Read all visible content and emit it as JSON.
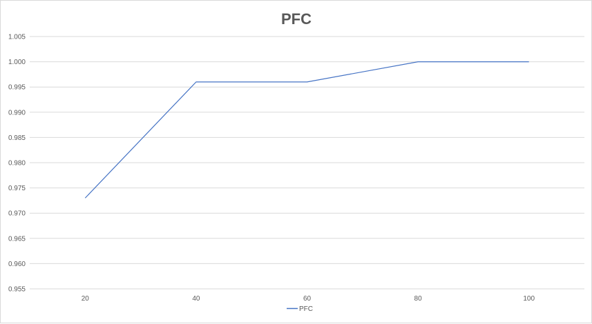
{
  "chart_data": {
    "type": "line",
    "title": "PFC",
    "xlabel": "",
    "ylabel": "",
    "categories": [
      "20",
      "40",
      "60",
      "80",
      "100"
    ],
    "series": [
      {
        "name": "PFC",
        "values": [
          0.973,
          0.996,
          0.996,
          1.0,
          1.0
        ],
        "color": "#4472c4"
      }
    ],
    "ylim": [
      0.955,
      1.005
    ],
    "y_ticks": [
      "1.005",
      "1.000",
      "0.995",
      "0.990",
      "0.985",
      "0.980",
      "0.975",
      "0.970",
      "0.965",
      "0.960",
      "0.955"
    ],
    "grid": true,
    "legend_position": "bottom"
  }
}
